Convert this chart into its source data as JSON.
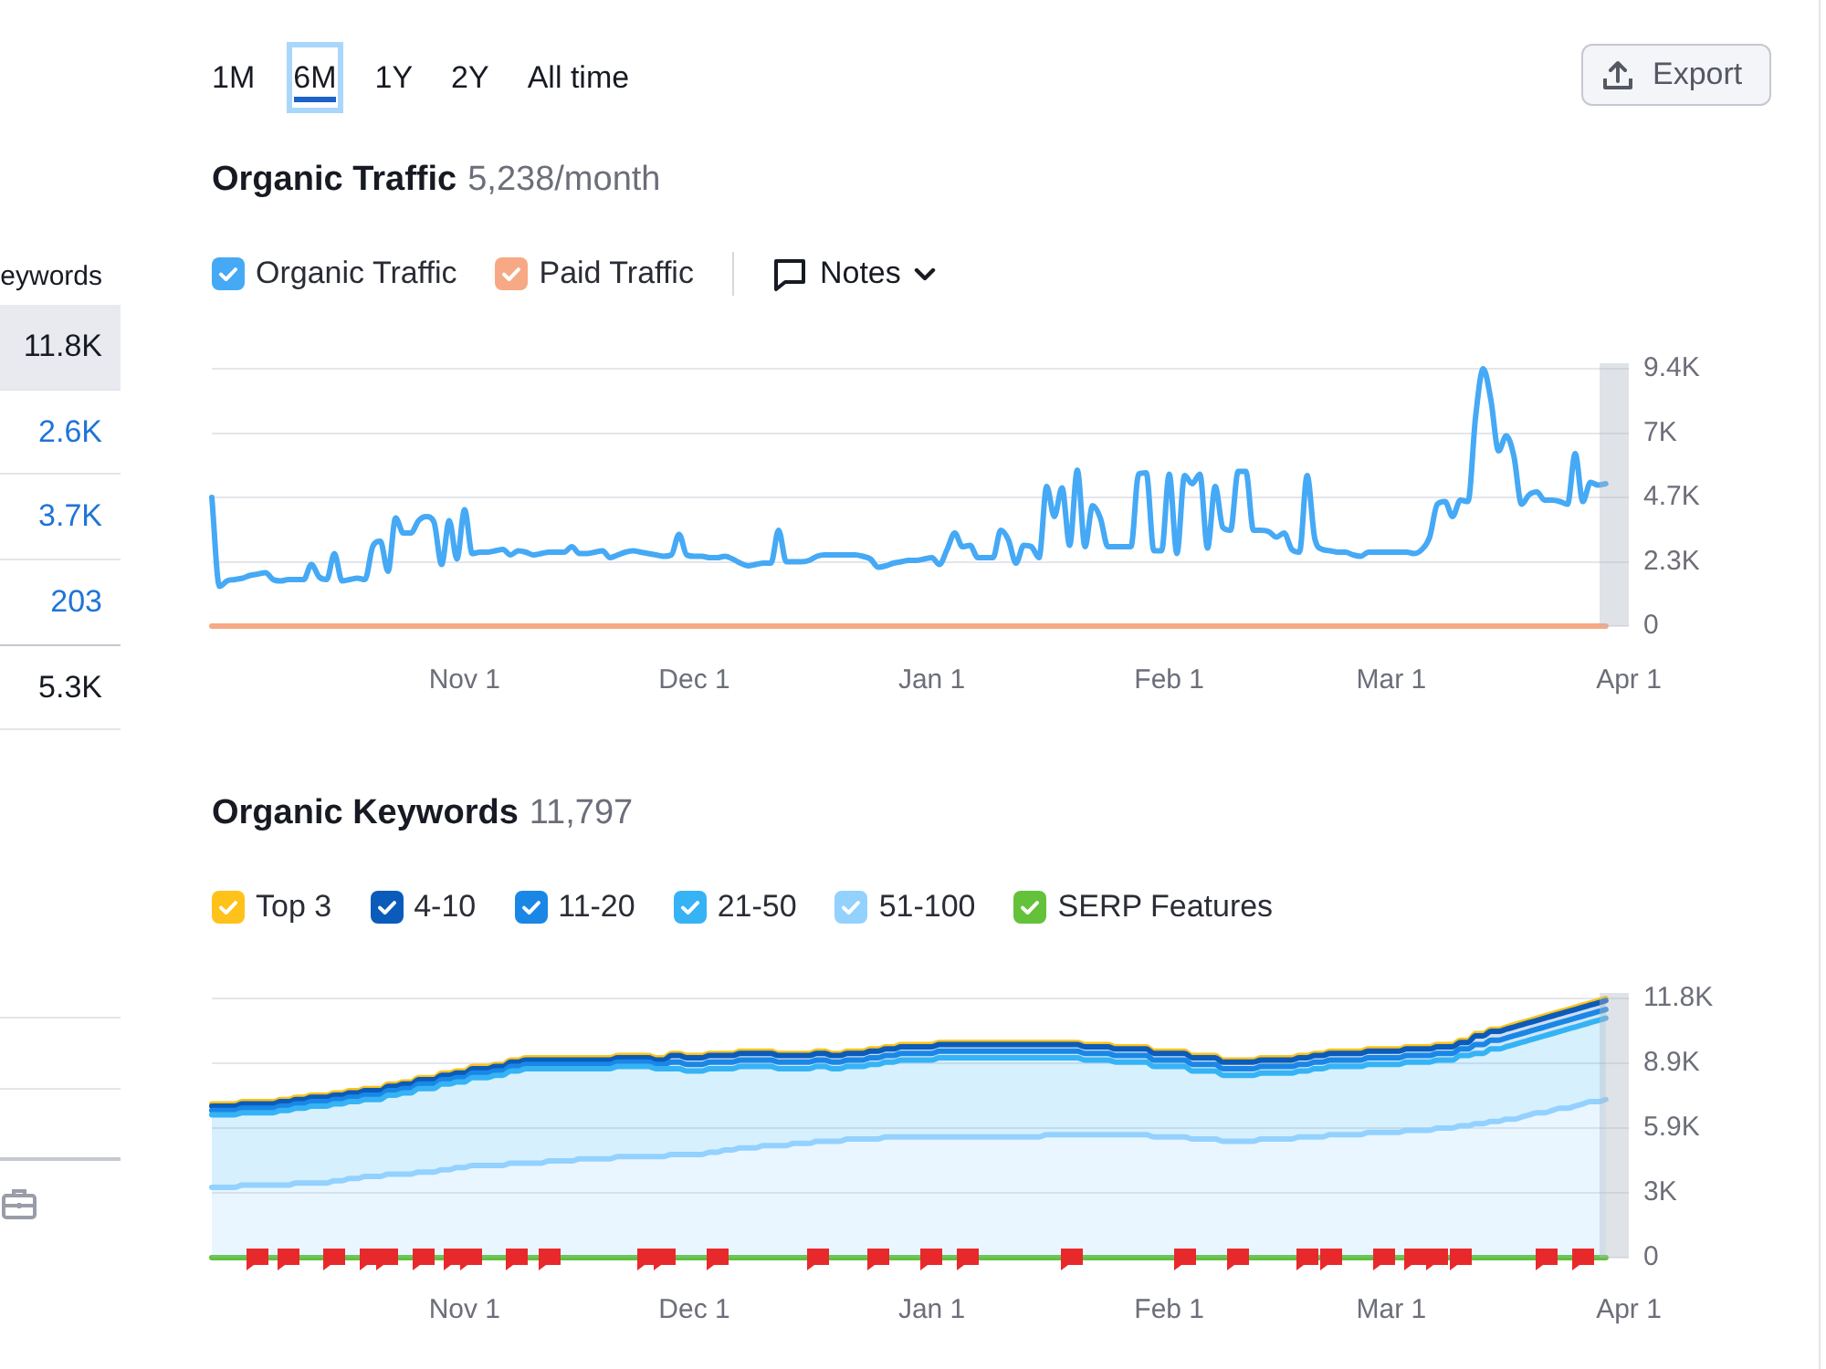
{
  "chart_data": [
    {
      "type": "other",
      "annotations": [
        "1M",
        "6M",
        "1Y",
        "2Y",
        "All time",
        "Export"
      ]
    },
    {
      "type": "other",
      "annotations": [
        "eywords",
        "11.8K",
        "2.6K",
        "3.7K",
        "203",
        "5.3K"
      ]
    },
    {
      "type": "line",
      "title": "Organic Traffic",
      "subtitle": "5,238/month",
      "legend": "top left",
      "grid": "y",
      "annotations": [
        "Notes"
      ],
      "categories": [
        null,
        null,
        null,
        null,
        null,
        null,
        null,
        null,
        null,
        null,
        null,
        null,
        null,
        null,
        null,
        null,
        null,
        null,
        null,
        null,
        null,
        null,
        null,
        null,
        null,
        null,
        null,
        null,
        null,
        null,
        null,
        null,
        null,
        "Nov 1",
        null,
        null,
        null,
        null,
        null,
        null,
        null,
        null,
        null,
        null,
        null,
        null,
        null,
        null,
        null,
        null,
        null,
        null,
        null,
        null,
        null,
        null,
        null,
        null,
        null,
        null,
        null,
        null,
        null,
        "Dec 1",
        null,
        null,
        null,
        null,
        null,
        null,
        null,
        null,
        null,
        null,
        null,
        null,
        null,
        null,
        null,
        null,
        null,
        null,
        null,
        null,
        null,
        null,
        null,
        null,
        null,
        null,
        null,
        null,
        null,
        null,
        "Jan 1",
        null,
        null,
        null,
        null,
        null,
        null,
        null,
        null,
        null,
        null,
        null,
        null,
        null,
        null,
        null,
        null,
        null,
        null,
        null,
        null,
        null,
        null,
        null,
        null,
        null,
        null,
        null,
        null,
        null,
        null,
        "Feb 1",
        null,
        null,
        null,
        null,
        null,
        null,
        null,
        null,
        null,
        null,
        null,
        null,
        null,
        null,
        null,
        null,
        null,
        null,
        null,
        null,
        null,
        null,
        null,
        null,
        null,
        null,
        null,
        null,
        "Mar 1",
        null,
        null,
        null,
        null,
        null,
        null,
        null,
        null,
        null,
        null,
        null,
        null,
        null,
        null,
        null,
        null,
        null,
        null,
        null,
        null,
        null,
        null,
        null,
        null,
        null,
        null,
        null,
        null,
        null,
        null,
        "Apr 1"
      ],
      "series": [
        {
          "name": "Organic Traffic",
          "color": "#45a9f5",
          "values": [
            4700,
            1450,
            1650,
            1700,
            1750,
            1850,
            1900,
            1950,
            1700,
            1650,
            1700,
            1700,
            1700,
            2250,
            1800,
            1700,
            2650,
            1650,
            1700,
            1750,
            1700,
            2900,
            3100,
            2000,
            3950,
            3400,
            3400,
            3850,
            4000,
            3800,
            2250,
            3850,
            2450,
            4250,
            2650,
            2700,
            2700,
            2750,
            2800,
            2600,
            2750,
            2700,
            2600,
            2650,
            2700,
            2700,
            2700,
            2900,
            2650,
            2650,
            2700,
            2750,
            2500,
            2600,
            2700,
            2750,
            2700,
            2650,
            2600,
            2550,
            2600,
            3350,
            2600,
            2550,
            2550,
            2500,
            2500,
            2550,
            2450,
            2300,
            2200,
            2250,
            2300,
            2300,
            3500,
            2350,
            2350,
            2350,
            2400,
            2550,
            2600,
            2600,
            2600,
            2600,
            2600,
            2550,
            2450,
            2150,
            2200,
            2300,
            2350,
            2400,
            2400,
            2450,
            2500,
            2250,
            2800,
            3400,
            2900,
            2950,
            2500,
            2500,
            2500,
            3500,
            3150,
            2300,
            2950,
            2900,
            2500,
            5100,
            4000,
            5050,
            2950,
            5700,
            2900,
            4400,
            3950,
            2900,
            2900,
            2900,
            2900,
            5550,
            5600,
            2750,
            2750,
            5550,
            2650,
            5500,
            5200,
            5550,
            2850,
            5100,
            3600,
            3500,
            5650,
            5650,
            3500,
            3500,
            3450,
            3250,
            3400,
            2800,
            2700,
            5500,
            3200,
            2800,
            2750,
            2700,
            2700,
            2600,
            2550,
            2700,
            2700,
            2700,
            2700,
            2700,
            2700,
            2650,
            2800,
            3250,
            4450,
            4550,
            4000,
            4600,
            4550,
            7650,
            9400,
            8250,
            6400,
            6950,
            6200,
            4450,
            4800,
            4900,
            4600,
            4600,
            4550,
            4450,
            6300,
            4550,
            5250,
            5150,
            5200,
            null,
            null,
            null
          ]
        },
        {
          "name": "Paid Traffic",
          "color": "#f6a984",
          "values": [
            0,
            0,
            0,
            0,
            0,
            0,
            0,
            0,
            0,
            0,
            0,
            0,
            0,
            0,
            0,
            0,
            0,
            0,
            0,
            0,
            0,
            0,
            0,
            0,
            0,
            0,
            0,
            0,
            0,
            0,
            0,
            0,
            0,
            0,
            0,
            0,
            0,
            0,
            0,
            0,
            0,
            0,
            0,
            0,
            0,
            0,
            0,
            0,
            0,
            0,
            0,
            0,
            0,
            0,
            0,
            0,
            0,
            0,
            0,
            0,
            0,
            0,
            0,
            0,
            0,
            0,
            0,
            0,
            0,
            0,
            0,
            0,
            0,
            0,
            0,
            0,
            0,
            0,
            0,
            0,
            0,
            0,
            0,
            0,
            0,
            0,
            0,
            0,
            0,
            0,
            0,
            0,
            0,
            0,
            0,
            0,
            0,
            0,
            0,
            0,
            0,
            0,
            0,
            0,
            0,
            0,
            0,
            0,
            0,
            0,
            0,
            0,
            0,
            0,
            0,
            0,
            0,
            0,
            0,
            0,
            0,
            0,
            0,
            0,
            0,
            0,
            0,
            0,
            0,
            0,
            0,
            0,
            0,
            0,
            0,
            0,
            0,
            0,
            0,
            0,
            0,
            0,
            0,
            0,
            0,
            0,
            0,
            0,
            0,
            0,
            0,
            0,
            0,
            0,
            0,
            0,
            0,
            0,
            0,
            0,
            0,
            0,
            0,
            0,
            0,
            0,
            0,
            0,
            0,
            0,
            0,
            0,
            0,
            0,
            0,
            0,
            0,
            0,
            0,
            0,
            0,
            0,
            0,
            null,
            null,
            null
          ]
        }
      ],
      "ylim": [
        0,
        9400
      ],
      "yticks": [
        0,
        {
          "value": 2350,
          "label": "2.3K"
        },
        {
          "value": 4700,
          "label": "4.7K"
        },
        {
          "value": 7050,
          "label": "7K"
        },
        {
          "value": 9400,
          "label": "9.4K"
        }
      ]
    },
    {
      "type": "area",
      "title": "Organic Keywords",
      "subtitle": "11,797",
      "legend": "top left",
      "grid": "y",
      "stacked": true,
      "categories": [
        null,
        null,
        null,
        null,
        null,
        null,
        null,
        null,
        null,
        null,
        null,
        null,
        null,
        null,
        null,
        null,
        null,
        null,
        null,
        null,
        null,
        null,
        null,
        null,
        null,
        null,
        null,
        null,
        null,
        null,
        null,
        null,
        null,
        "Nov 1",
        null,
        null,
        null,
        null,
        null,
        null,
        null,
        null,
        null,
        null,
        null,
        null,
        null,
        null,
        null,
        null,
        null,
        null,
        null,
        null,
        null,
        null,
        null,
        null,
        null,
        null,
        null,
        null,
        null,
        "Dec 1",
        null,
        null,
        null,
        null,
        null,
        null,
        null,
        null,
        null,
        null,
        null,
        null,
        null,
        null,
        null,
        null,
        null,
        null,
        null,
        null,
        null,
        null,
        null,
        null,
        null,
        null,
        null,
        null,
        null,
        null,
        "Jan 1",
        null,
        null,
        null,
        null,
        null,
        null,
        null,
        null,
        null,
        null,
        null,
        null,
        null,
        null,
        null,
        null,
        null,
        null,
        null,
        null,
        null,
        null,
        null,
        null,
        null,
        null,
        null,
        null,
        null,
        null,
        "Feb 1",
        null,
        null,
        null,
        null,
        null,
        null,
        null,
        null,
        null,
        null,
        null,
        null,
        null,
        null,
        null,
        null,
        null,
        null,
        null,
        null,
        null,
        null,
        null,
        null,
        null,
        null,
        null,
        null,
        "Mar 1",
        null,
        null,
        null,
        null,
        null,
        null,
        null,
        null,
        null,
        null,
        null,
        null,
        null,
        null,
        null,
        null,
        null,
        null,
        null,
        null,
        null,
        null,
        null,
        null,
        null,
        null,
        null,
        null,
        null,
        null,
        "Apr 1"
      ],
      "series": [
        {
          "name": "51-100",
          "color": "#93d1ff",
          "values": [
            3200,
            3200,
            3200,
            3200,
            3300,
            3300,
            3300,
            3300,
            3300,
            3300,
            3300,
            3400,
            3400,
            3400,
            3400,
            3400,
            3500,
            3500,
            3600,
            3600,
            3700,
            3700,
            3700,
            3800,
            3800,
            3800,
            3800,
            3900,
            3900,
            3900,
            4000,
            4000,
            4100,
            4100,
            4200,
            4200,
            4200,
            4200,
            4200,
            4300,
            4300,
            4300,
            4300,
            4300,
            4400,
            4400,
            4400,
            4400,
            4500,
            4500,
            4500,
            4500,
            4500,
            4600,
            4600,
            4600,
            4600,
            4600,
            4600,
            4600,
            4700,
            4700,
            4700,
            4700,
            4700,
            4800,
            4800,
            4900,
            4900,
            5000,
            5000,
            5000,
            5100,
            5100,
            5100,
            5100,
            5200,
            5200,
            5200,
            5300,
            5300,
            5300,
            5300,
            5400,
            5400,
            5400,
            5400,
            5400,
            5500,
            5500,
            5500,
            5500,
            5500,
            5500,
            5500,
            5500,
            5500,
            5500,
            5500,
            5500,
            5500,
            5500,
            5500,
            5500,
            5500,
            5500,
            5500,
            5500,
            5500,
            5600,
            5600,
            5600,
            5600,
            5600,
            5600,
            5600,
            5600,
            5600,
            5600,
            5600,
            5600,
            5600,
            5600,
            5500,
            5500,
            5500,
            5500,
            5500,
            5400,
            5400,
            5400,
            5400,
            5300,
            5300,
            5300,
            5300,
            5300,
            5400,
            5400,
            5400,
            5400,
            5400,
            5500,
            5500,
            5500,
            5500,
            5600,
            5600,
            5600,
            5600,
            5600,
            5700,
            5700,
            5700,
            5700,
            5700,
            5800,
            5800,
            5800,
            5800,
            5900,
            5900,
            5900,
            6000,
            6000,
            6100,
            6100,
            6200,
            6200,
            6300,
            6300,
            6400,
            6500,
            6600,
            6600,
            6700,
            6800,
            6800,
            6900,
            7000,
            7100,
            7100,
            7200,
            null,
            null,
            null
          ]
        },
        {
          "name": "21-50",
          "color": "#35b3f5",
          "values": [
            3300,
            3300,
            3300,
            3300,
            3300,
            3300,
            3300,
            3300,
            3300,
            3400,
            3400,
            3400,
            3400,
            3500,
            3500,
            3500,
            3500,
            3500,
            3500,
            3500,
            3500,
            3500,
            3500,
            3600,
            3600,
            3700,
            3700,
            3800,
            3800,
            3800,
            3900,
            3900,
            3900,
            3900,
            4000,
            4000,
            4000,
            4100,
            4100,
            4200,
            4200,
            4300,
            4300,
            4300,
            4200,
            4200,
            4200,
            4200,
            4100,
            4100,
            4100,
            4100,
            4100,
            4100,
            4100,
            4100,
            4100,
            4100,
            4000,
            4000,
            3900,
            3900,
            3800,
            3800,
            3800,
            3800,
            3800,
            3700,
            3700,
            3700,
            3700,
            3700,
            3600,
            3600,
            3500,
            3500,
            3400,
            3400,
            3400,
            3400,
            3400,
            3300,
            3300,
            3300,
            3300,
            3300,
            3400,
            3400,
            3400,
            3400,
            3500,
            3500,
            3500,
            3500,
            3500,
            3600,
            3600,
            3600,
            3600,
            3600,
            3600,
            3600,
            3600,
            3600,
            3600,
            3600,
            3600,
            3600,
            3600,
            3500,
            3500,
            3500,
            3500,
            3500,
            3400,
            3400,
            3400,
            3400,
            3300,
            3300,
            3300,
            3300,
            3300,
            3200,
            3200,
            3200,
            3200,
            3200,
            3100,
            3100,
            3100,
            3100,
            3000,
            3000,
            3000,
            3000,
            3000,
            3000,
            3000,
            3000,
            3000,
            3000,
            3000,
            3000,
            3100,
            3100,
            3100,
            3100,
            3100,
            3100,
            3100,
            3100,
            3100,
            3100,
            3100,
            3100,
            3100,
            3100,
            3100,
            3100,
            3100,
            3100,
            3100,
            3200,
            3200,
            3200,
            3200,
            3300,
            3300,
            3300,
            3400,
            3400,
            3400,
            3400,
            3500,
            3500,
            3500,
            3600,
            3600,
            3600,
            3600,
            3700,
            3700,
            null,
            null,
            null
          ]
        },
        {
          "name": "11-20",
          "color": "#1a87e6",
          "values": [
            200,
            200,
            200,
            200,
            200,
            200,
            200,
            200,
            200,
            200,
            200,
            200,
            200,
            200,
            200,
            200,
            200,
            200,
            200,
            200,
            200,
            200,
            200,
            200,
            200,
            200,
            200,
            200,
            200,
            200,
            200,
            200,
            200,
            200,
            200,
            200,
            200,
            200,
            200,
            200,
            200,
            200,
            200,
            200,
            200,
            200,
            200,
            200,
            200,
            200,
            200,
            200,
            200,
            200,
            200,
            200,
            200,
            200,
            200,
            200,
            300,
            300,
            300,
            300,
            300,
            300,
            300,
            300,
            300,
            300,
            300,
            300,
            300,
            300,
            300,
            300,
            300,
            300,
            300,
            300,
            300,
            300,
            300,
            300,
            300,
            300,
            300,
            300,
            300,
            300,
            300,
            300,
            300,
            300,
            300,
            300,
            300,
            300,
            300,
            300,
            300,
            300,
            300,
            300,
            300,
            300,
            300,
            300,
            300,
            300,
            300,
            300,
            300,
            300,
            300,
            300,
            300,
            300,
            300,
            300,
            300,
            300,
            300,
            300,
            300,
            300,
            300,
            300,
            300,
            300,
            300,
            300,
            300,
            300,
            300,
            300,
            300,
            300,
            300,
            300,
            300,
            300,
            300,
            300,
            300,
            300,
            300,
            300,
            300,
            300,
            300,
            300,
            300,
            300,
            300,
            300,
            300,
            300,
            300,
            300,
            300,
            300,
            300,
            300,
            300,
            400,
            400,
            400,
            400,
            400,
            400,
            400,
            400,
            400,
            400,
            400,
            400,
            400,
            400,
            400,
            400,
            400,
            400,
            null,
            null,
            null
          ]
        },
        {
          "name": "4-10",
          "color": "#0b5cba",
          "values": [
            200,
            200,
            200,
            200,
            200,
            200,
            200,
            200,
            200,
            200,
            200,
            200,
            200,
            200,
            200,
            200,
            200,
            200,
            200,
            200,
            200,
            200,
            200,
            200,
            200,
            200,
            200,
            200,
            200,
            200,
            200,
            200,
            200,
            200,
            200,
            200,
            200,
            200,
            200,
            200,
            200,
            200,
            200,
            200,
            200,
            200,
            200,
            200,
            200,
            200,
            200,
            200,
            200,
            200,
            200,
            200,
            200,
            200,
            200,
            200,
            300,
            300,
            300,
            300,
            300,
            300,
            300,
            300,
            300,
            300,
            300,
            300,
            300,
            300,
            300,
            300,
            300,
            300,
            300,
            300,
            300,
            300,
            300,
            300,
            300,
            300,
            300,
            300,
            300,
            300,
            300,
            300,
            300,
            300,
            300,
            300,
            300,
            300,
            300,
            300,
            300,
            300,
            300,
            300,
            300,
            300,
            300,
            300,
            300,
            300,
            300,
            300,
            300,
            300,
            300,
            300,
            300,
            300,
            300,
            300,
            300,
            300,
            300,
            300,
            300,
            300,
            300,
            300,
            300,
            300,
            300,
            300,
            300,
            300,
            300,
            300,
            300,
            300,
            300,
            300,
            300,
            300,
            300,
            300,
            300,
            300,
            300,
            300,
            300,
            300,
            300,
            300,
            300,
            300,
            300,
            300,
            300,
            300,
            300,
            300,
            300,
            300,
            300,
            300,
            300,
            400,
            400,
            400,
            400,
            400,
            400,
            400,
            400,
            400,
            400,
            400,
            400,
            400,
            400,
            400,
            400,
            400,
            400,
            null,
            null,
            null
          ]
        },
        {
          "name": "Top 3",
          "color": "#ffc21a",
          "values": [
            100,
            100,
            100,
            100,
            100,
            100,
            100,
            100,
            100,
            100,
            100,
            100,
            100,
            100,
            100,
            100,
            100,
            100,
            100,
            100,
            100,
            100,
            100,
            100,
            100,
            100,
            100,
            100,
            100,
            100,
            100,
            100,
            100,
            100,
            100,
            100,
            100,
            100,
            100,
            100,
            100,
            100,
            100,
            100,
            100,
            100,
            100,
            100,
            100,
            100,
            100,
            100,
            100,
            100,
            100,
            100,
            100,
            100,
            100,
            100,
            100,
            100,
            100,
            100,
            100,
            100,
            100,
            100,
            100,
            100,
            100,
            100,
            100,
            100,
            100,
            100,
            100,
            100,
            100,
            100,
            100,
            100,
            100,
            100,
            100,
            100,
            100,
            100,
            100,
            100,
            100,
            100,
            100,
            100,
            100,
            100,
            100,
            100,
            100,
            100,
            100,
            100,
            100,
            100,
            100,
            100,
            100,
            100,
            100,
            100,
            100,
            100,
            100,
            100,
            100,
            100,
            100,
            100,
            100,
            100,
            100,
            100,
            100,
            100,
            100,
            100,
            100,
            100,
            100,
            100,
            100,
            100,
            100,
            100,
            100,
            100,
            100,
            100,
            100,
            100,
            100,
            100,
            100,
            100,
            100,
            100,
            100,
            100,
            100,
            100,
            100,
            100,
            100,
            100,
            100,
            100,
            100,
            100,
            100,
            100,
            100,
            100,
            100,
            100,
            100,
            100,
            100,
            100,
            100,
            100,
            100,
            100,
            100,
            100,
            100,
            100,
            100,
            100,
            100,
            100,
            100,
            100,
            100,
            null,
            null,
            null
          ]
        },
        {
          "name": "SERP Features",
          "type": "line",
          "color": "#63c13a",
          "values": [
            0,
            0,
            0,
            0,
            0,
            0,
            0,
            0,
            0,
            0,
            0,
            0,
            0,
            0,
            0,
            0,
            0,
            0,
            0,
            0,
            0,
            0,
            0,
            0,
            0,
            0,
            0,
            0,
            0,
            0,
            0,
            0,
            0,
            0,
            0,
            0,
            0,
            0,
            0,
            0,
            0,
            0,
            0,
            0,
            0,
            0,
            0,
            0,
            0,
            0,
            0,
            0,
            0,
            0,
            0,
            0,
            0,
            0,
            0,
            0,
            0,
            0,
            0,
            0,
            0,
            0,
            0,
            0,
            0,
            0,
            0,
            0,
            0,
            0,
            0,
            0,
            0,
            0,
            0,
            0,
            0,
            0,
            0,
            0,
            0,
            0,
            0,
            0,
            0,
            0,
            0,
            0,
            0,
            0,
            0,
            0,
            0,
            0,
            0,
            0,
            0,
            0,
            0,
            0,
            0,
            0,
            0,
            0,
            0,
            0,
            0,
            0,
            0,
            0,
            0,
            0,
            0,
            0,
            0,
            0,
            0,
            0,
            0,
            0,
            0,
            0,
            0,
            0,
            0,
            0,
            0,
            0,
            0,
            0,
            0,
            0,
            0,
            0,
            0,
            0,
            0,
            0,
            0,
            0,
            0,
            0,
            0,
            0,
            0,
            0,
            0,
            0,
            0,
            0,
            0,
            0,
            0,
            0,
            0,
            0,
            0,
            0,
            0,
            0,
            0,
            0,
            0,
            0,
            0,
            0,
            0,
            0,
            0,
            0,
            0,
            0,
            0,
            0,
            0,
            0,
            0,
            0,
            0,
            null,
            null,
            null
          ]
        }
      ],
      "ylim": [
        0,
        11800
      ],
      "yticks": [
        0,
        {
          "value": 2950,
          "label": "3K"
        },
        {
          "value": 5900,
          "label": "5.9K"
        },
        {
          "value": 8850,
          "label": "8.9K"
        },
        {
          "value": 11800,
          "label": "11.8K"
        }
      ]
    }
  ]
}
